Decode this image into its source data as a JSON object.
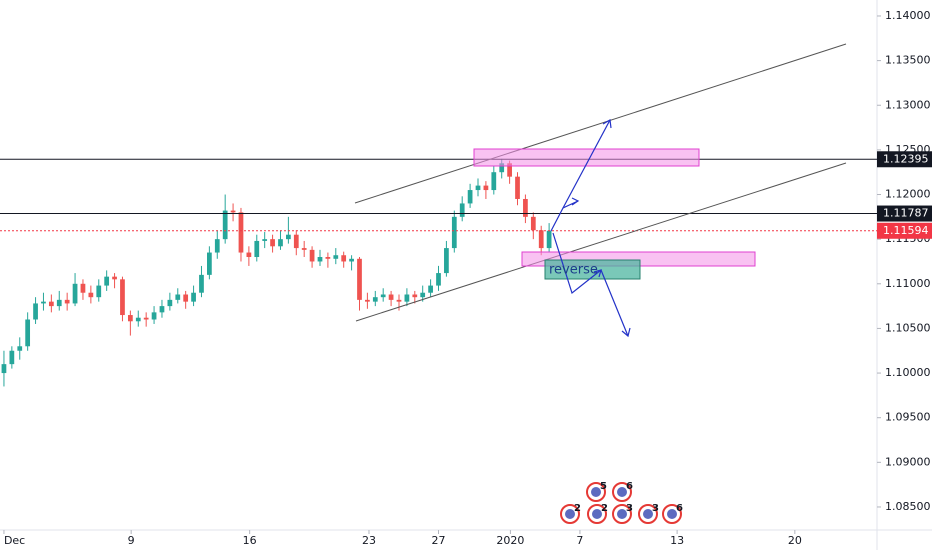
{
  "chart_data": {
    "type": "candlestick",
    "x": [
      0,
      1,
      2,
      3,
      4,
      5,
      6,
      7,
      8,
      9,
      10,
      11,
      12,
      13,
      14,
      15,
      16,
      17,
      18,
      19,
      20,
      21,
      22,
      23,
      24,
      25,
      26,
      27,
      28,
      29,
      30,
      31,
      32,
      33,
      34,
      35,
      36,
      37,
      38,
      39,
      40,
      41,
      42,
      43,
      44,
      45,
      46,
      47,
      48,
      49,
      50,
      51,
      52,
      53,
      54,
      55,
      56,
      57,
      58,
      59,
      60,
      61,
      62,
      63,
      64,
      65,
      66,
      67,
      68,
      69
    ],
    "open": [
      1.1,
      1.101,
      1.1025,
      1.103,
      1.106,
      1.1078,
      1.108,
      1.1075,
      1.1082,
      1.1078,
      1.11,
      1.109,
      1.1085,
      1.1098,
      1.1108,
      1.1105,
      1.1065,
      1.1058,
      1.1062,
      1.106,
      1.1068,
      1.1075,
      1.1082,
      1.1088,
      1.108,
      1.109,
      1.111,
      1.1135,
      1.115,
      1.1182,
      1.118,
      1.1135,
      1.113,
      1.1148,
      1.115,
      1.1142,
      1.115,
      1.1155,
      1.114,
      1.1138,
      1.1125,
      1.113,
      1.1128,
      1.1132,
      1.1125,
      1.1128,
      1.1082,
      1.108,
      1.1085,
      1.1088,
      1.1082,
      1.108,
      1.1088,
      1.1085,
      1.109,
      1.1098,
      1.1112,
      1.114,
      1.1175,
      1.119,
      1.1205,
      1.121,
      1.1205,
      1.1225,
      1.1235,
      1.122,
      1.1195,
      1.1175,
      1.116,
      1.114
    ],
    "high": [
      1.1025,
      1.103,
      1.104,
      1.1068,
      1.1085,
      1.109,
      1.1088,
      1.1092,
      1.109,
      1.1112,
      1.1105,
      1.1098,
      1.1105,
      1.1115,
      1.1112,
      1.1108,
      1.107,
      1.107,
      1.1068,
      1.1075,
      1.1082,
      1.109,
      1.1095,
      1.1092,
      1.1098,
      1.112,
      1.1142,
      1.116,
      1.12,
      1.119,
      1.1185,
      1.1142,
      1.1155,
      1.1158,
      1.1155,
      1.116,
      1.1175,
      1.116,
      1.1148,
      1.1142,
      1.1138,
      1.1135,
      1.114,
      1.1136,
      1.1132,
      1.113,
      1.109,
      1.1092,
      1.1095,
      1.1092,
      1.1088,
      1.1095,
      1.1092,
      1.1098,
      1.1105,
      1.112,
      1.1148,
      1.1182,
      1.1198,
      1.1212,
      1.1218,
      1.1215,
      1.1232,
      1.124,
      1.1238,
      1.1225,
      1.12,
      1.118,
      1.1165,
      1.1168
    ],
    "low": [
      1.0985,
      1.1005,
      1.1015,
      1.1025,
      1.1055,
      1.107,
      1.1068,
      1.107,
      1.107,
      1.1075,
      1.1082,
      1.1078,
      1.108,
      1.1092,
      1.1095,
      1.1058,
      1.1042,
      1.1052,
      1.1052,
      1.1055,
      1.1062,
      1.107,
      1.1078,
      1.1072,
      1.1075,
      1.1085,
      1.1105,
      1.1128,
      1.1145,
      1.117,
      1.1125,
      1.112,
      1.1125,
      1.114,
      1.1135,
      1.1138,
      1.1145,
      1.1132,
      1.113,
      1.1118,
      1.112,
      1.1118,
      1.1122,
      1.1118,
      1.1115,
      1.107,
      1.1072,
      1.1075,
      1.108,
      1.1075,
      1.107,
      1.1075,
      1.1078,
      1.108,
      1.1085,
      1.1092,
      1.1108,
      1.1135,
      1.117,
      1.1185,
      1.1198,
      1.1195,
      1.12,
      1.1218,
      1.1212,
      1.1188,
      1.1168,
      1.115,
      1.1132,
      1.1135
    ],
    "close": [
      1.101,
      1.1025,
      1.103,
      1.106,
      1.1078,
      1.108,
      1.1075,
      1.1082,
      1.1078,
      1.11,
      1.109,
      1.1085,
      1.1098,
      1.1108,
      1.1105,
      1.1065,
      1.1058,
      1.1062,
      1.106,
      1.1068,
      1.1075,
      1.1082,
      1.1088,
      1.108,
      1.109,
      1.111,
      1.1135,
      1.115,
      1.1182,
      1.118,
      1.1135,
      1.113,
      1.1148,
      1.115,
      1.1142,
      1.115,
      1.1155,
      1.114,
      1.1138,
      1.1125,
      1.113,
      1.1128,
      1.1132,
      1.1125,
      1.1128,
      1.1082,
      1.108,
      1.1085,
      1.1088,
      1.1082,
      1.108,
      1.1088,
      1.1085,
      1.109,
      1.1098,
      1.1112,
      1.114,
      1.1175,
      1.119,
      1.1205,
      1.121,
      1.1205,
      1.1225,
      1.1235,
      1.122,
      1.1195,
      1.1175,
      1.116,
      1.114,
      1.11594
    ],
    "up_color": "#26a69a",
    "down_color": "#ef5350",
    "xlim": [
      -0.5,
      110.5
    ],
    "xticks": [
      {
        "value": 0,
        "label": "Dec"
      },
      {
        "value": 16.1,
        "label": "9"
      },
      {
        "value": 31.1,
        "label": "16"
      },
      {
        "value": 46.2,
        "label": "23"
      },
      {
        "value": 55,
        "label": "27"
      },
      {
        "value": 64.1,
        "label": "2020"
      },
      {
        "value": 72.9,
        "label": "7"
      },
      {
        "value": 85.2,
        "label": "13"
      },
      {
        "value": 100.1,
        "label": "20"
      }
    ],
    "ylim": [
      1.08242,
      1.14179
    ],
    "yticks": [
      {
        "value": 1.14,
        "label": "1.14000"
      },
      {
        "value": 1.135,
        "label": "1.13500"
      },
      {
        "value": 1.13,
        "label": "1.13000"
      },
      {
        "value": 1.125,
        "label": "1.12500"
      },
      {
        "value": 1.12,
        "label": "1.12000"
      },
      {
        "value": 1.115,
        "label": "1.11500"
      },
      {
        "value": 1.11,
        "label": "1.11000"
      },
      {
        "value": 1.105,
        "label": "1.10500"
      },
      {
        "value": 1.1,
        "label": "1.10000"
      },
      {
        "value": 1.095,
        "label": "1.09500"
      },
      {
        "value": 1.09,
        "label": "1.09000"
      },
      {
        "value": 1.085,
        "label": "1.08500"
      }
    ],
    "price_lines": [
      {
        "value": 1.12395,
        "color": "#131722",
        "style": "solid"
      },
      {
        "value": 1.11787,
        "color": "#131722",
        "style": "solid"
      },
      {
        "value": 1.11594,
        "color": "#f23645",
        "style": "dotted"
      }
    ],
    "annotation": "reverse",
    "event_counts": [
      5,
      6,
      2,
      2,
      3,
      3,
      6
    ]
  }
}
